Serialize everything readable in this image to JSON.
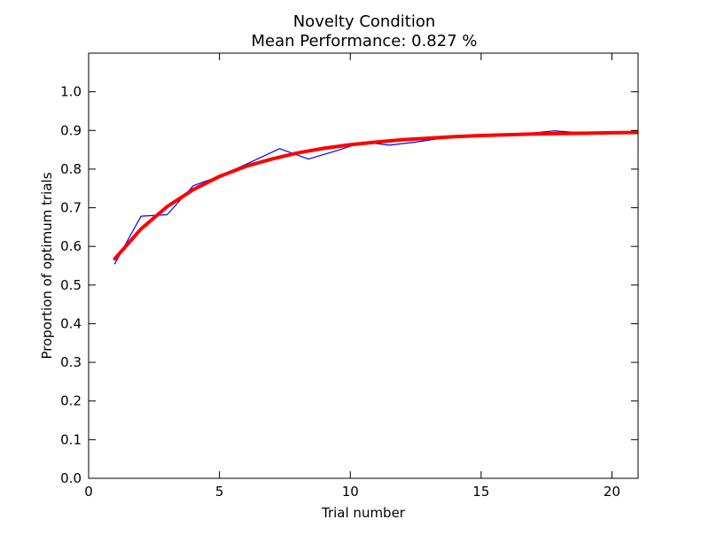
{
  "chart_data": {
    "type": "line",
    "title": "Novelty Condition",
    "subtitle": "Mean Performance: 0.827 %",
    "xlabel": "Trial number",
    "ylabel": "Proportion of optimum trials",
    "xlim": [
      0,
      21
    ],
    "ylim": [
      0.0,
      1.1
    ],
    "x_ticks": [
      0,
      5,
      10,
      15,
      20
    ],
    "x_tick_labels": [
      "0",
      "5",
      "10",
      "15",
      "20"
    ],
    "y_ticks": [
      0.0,
      0.1,
      0.2,
      0.3,
      0.4,
      0.5,
      0.6,
      0.7,
      0.8,
      0.9,
      1.0
    ],
    "y_tick_labels": [
      "0.0",
      "0.1",
      "0.2",
      "0.3",
      "0.4",
      "0.5",
      "0.6",
      "0.7",
      "0.8",
      "0.9",
      "1.0"
    ],
    "grid": false,
    "series": [
      {
        "role": "observed",
        "color": "#0000ff",
        "line_width": "thin",
        "x": [
          1,
          2,
          3,
          4,
          5,
          6,
          7.3,
          8.4,
          9.5,
          10.5,
          11.5,
          12.5,
          13.5,
          14.5,
          15.5,
          16.5,
          17.8,
          19,
          20,
          21
        ],
        "y": [
          0.555,
          0.678,
          0.682,
          0.757,
          0.782,
          0.812,
          0.853,
          0.826,
          0.848,
          0.87,
          0.862,
          0.87,
          0.88,
          0.887,
          0.888,
          0.89,
          0.899,
          0.893,
          0.893,
          0.898
        ]
      },
      {
        "role": "fitted",
        "color": "#ff0000",
        "line_width": "thick",
        "x": [
          1,
          2,
          3,
          4,
          5,
          6,
          7,
          8,
          9,
          10,
          11,
          12,
          13,
          14,
          15,
          16,
          17,
          18,
          19,
          20,
          21
        ],
        "y": [
          0.568,
          0.645,
          0.703,
          0.747,
          0.781,
          0.807,
          0.826,
          0.842,
          0.854,
          0.863,
          0.87,
          0.876,
          0.88,
          0.884,
          0.887,
          0.889,
          0.891,
          0.892,
          0.893,
          0.894,
          0.895
        ]
      }
    ]
  }
}
